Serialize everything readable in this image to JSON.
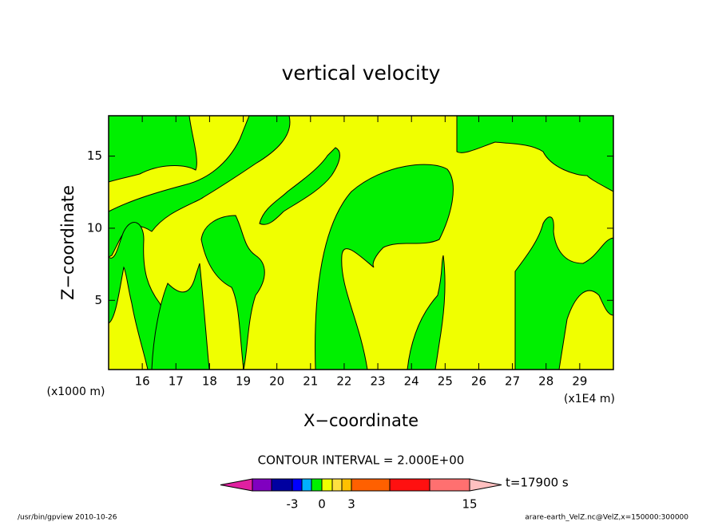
{
  "chart_data": {
    "type": "contour",
    "title": "vertical velocity",
    "xlabel": "X−coordinate",
    "ylabel": "Z−coordinate",
    "x_unit": "(x1E4 m)",
    "y_unit": "(x1000 m)",
    "xlim": [
      15,
      30
    ],
    "xticks": [
      16,
      17,
      18,
      19,
      20,
      21,
      22,
      23,
      24,
      25,
      26,
      27,
      28,
      29
    ],
    "ylim": [
      0.2,
      17.8
    ],
    "yticks": [
      5,
      10,
      15
    ],
    "contour_interval": "CONTOUR INTERVAL = 2.000E+00",
    "time": "t=17900 s",
    "footer_left": "/usr/bin/gpview  2010-10-26",
    "footer_right": "arare-earth_VelZ.nc@VelZ,x=150000:300000",
    "colorbar": {
      "levels": [
        -7,
        -5,
        -3,
        -2,
        -1,
        0,
        1,
        2,
        3,
        7,
        11,
        15
      ],
      "colors": [
        "#8000c0",
        "#0000a0",
        "#0000ff",
        "#00b0ff",
        "#00f000",
        "#f0ff00",
        "#ffe040",
        "#ffc000",
        "#ff6000",
        "#ff1010",
        "#ff7070"
      ],
      "under_color": "#e020a0",
      "over_color": "#ffc0c0",
      "ticks": [
        -3,
        0,
        3,
        15
      ]
    }
  }
}
